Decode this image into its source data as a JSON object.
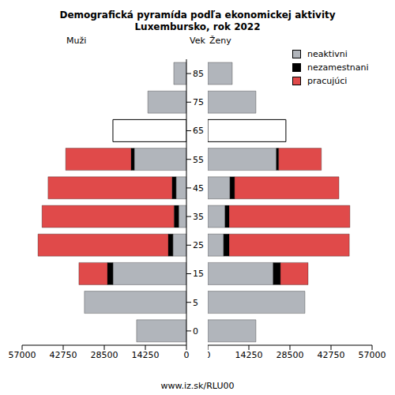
{
  "chart_data": [
    {
      "type": "bar",
      "title": "Demografická pyramída podľa ekonomickej aktivity",
      "subtitle": "Luxembursko, rok 2022",
      "caption": "www.iz.sk/RLU00",
      "label": "Muži",
      "ylabel": "Vek",
      "orientation": "horizontal",
      "stacked": true,
      "categories": [
        "0",
        "5",
        "15",
        "25",
        "35",
        "45",
        "55",
        "65",
        "75",
        "85"
      ],
      "xlim": [
        0,
        57000
      ],
      "xticks": [
        0,
        14250,
        28500,
        42750,
        57000
      ],
      "series": [
        {
          "name": "neaktivni",
          "color": "#b1b5bb",
          "colors": [
            "#b1b5bb",
            "#b1b5bb",
            "#b1b5bb",
            "#b1b5bb",
            "#b1b5bb",
            "#b1b5bb",
            "#b1b5bb",
            "#ffffff",
            "#b1b5bb",
            "#b1b5bb"
          ],
          "values": [
            17300,
            35400,
            25500,
            4700,
            2700,
            3600,
            18100,
            25500,
            13400,
            4400
          ]
        },
        {
          "name": "nezamestnani",
          "color": "#000000",
          "values": [
            0,
            0,
            1900,
            1600,
            1600,
            1400,
            1100,
            0,
            0,
            0
          ]
        },
        {
          "name": "pracujúci",
          "color": "#e04a4a",
          "values": [
            0,
            0,
            9900,
            45200,
            45800,
            43000,
            22700,
            0,
            0,
            0
          ]
        }
      ]
    },
    {
      "type": "bar",
      "label": "Ženy",
      "orientation": "horizontal",
      "stacked": true,
      "legend": "top right",
      "categories": [
        "0",
        "5",
        "15",
        "25",
        "35",
        "45",
        "55",
        "65",
        "75",
        "85"
      ],
      "xlim": [
        0,
        57000
      ],
      "xticks": [
        0,
        14250,
        28500,
        42750,
        57000
      ],
      "series": [
        {
          "name": "neaktivni",
          "color": "#b1b5bb",
          "colors": [
            "#b1b5bb",
            "#b1b5bb",
            "#b1b5bb",
            "#b1b5bb",
            "#b1b5bb",
            "#b1b5bb",
            "#b1b5bb",
            "#ffffff",
            "#b1b5bb",
            "#b1b5bb"
          ],
          "values": [
            16700,
            33700,
            22700,
            5500,
            6000,
            7700,
            23800,
            27100,
            16700,
            8500
          ]
        },
        {
          "name": "nezamestnani",
          "color": "#000000",
          "values": [
            0,
            0,
            2500,
            1900,
            1400,
            1600,
            800,
            0,
            0,
            0
          ]
        },
        {
          "name": "pracujúci",
          "color": "#e04a4a",
          "values": [
            0,
            0,
            9600,
            41700,
            41900,
            36200,
            14800,
            0,
            0,
            0
          ]
        }
      ]
    }
  ]
}
